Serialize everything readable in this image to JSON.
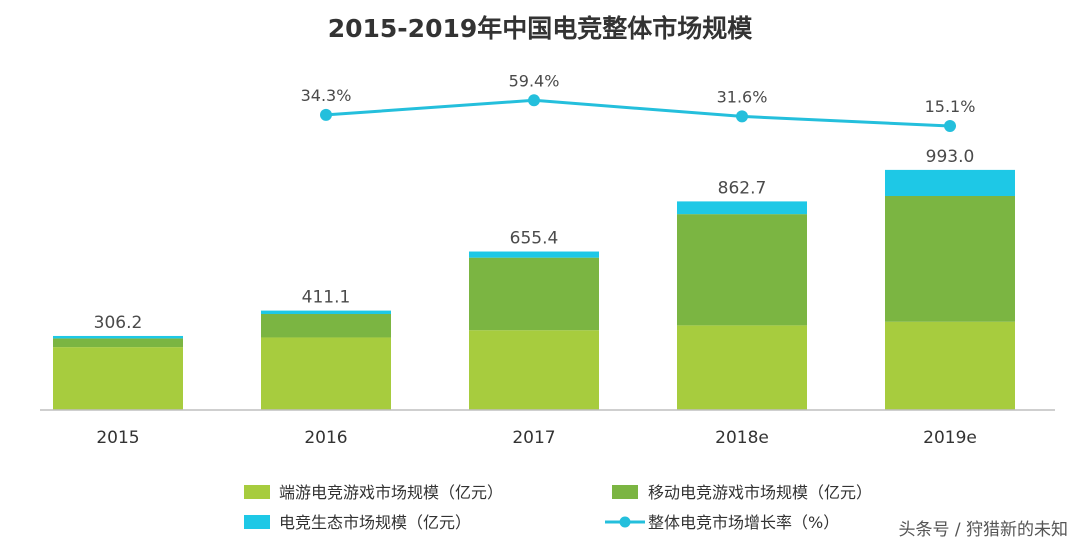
{
  "chart_data": {
    "type": "bar",
    "title": "2015-2019年中国电竞整体市场规模",
    "categories": [
      "2015",
      "2016",
      "2017",
      "2018e",
      "2019e"
    ],
    "series": [
      {
        "name": "端游电竞游戏市场规模（亿元）",
        "kind": "bar",
        "color": "#a7cc3e",
        "values": [
          260,
          300,
          330,
          350,
          365
        ]
      },
      {
        "name": "移动电竞游戏市场规模（亿元）",
        "kind": "bar",
        "color": "#7bb542",
        "values": [
          36,
          97,
          300,
          460,
          520
        ]
      },
      {
        "name": "电竞生态市场规模（亿元）",
        "kind": "bar",
        "color": "#1ec8e6",
        "values": [
          10.2,
          14.1,
          25.4,
          52.7,
          108.0
        ]
      },
      {
        "name": "整体电竞市场增长率（%）",
        "kind": "line",
        "color": "#24bfdc",
        "values": [
          null,
          34.3,
          59.4,
          31.6,
          15.1
        ]
      }
    ],
    "totals": [
      306.2,
      411.1,
      655.4,
      862.7,
      993.0
    ],
    "total_labels": [
      "306.2",
      "411.1",
      "655.4",
      "862.7",
      "993.0"
    ],
    "rate_labels": [
      "",
      "34.3%",
      "59.4%",
      "31.6%",
      "15.1%"
    ],
    "ylim": [
      0,
      1000
    ],
    "legend_position": "bottom",
    "grid": false
  },
  "watermark": "头条号 / 狩猎新的未知"
}
